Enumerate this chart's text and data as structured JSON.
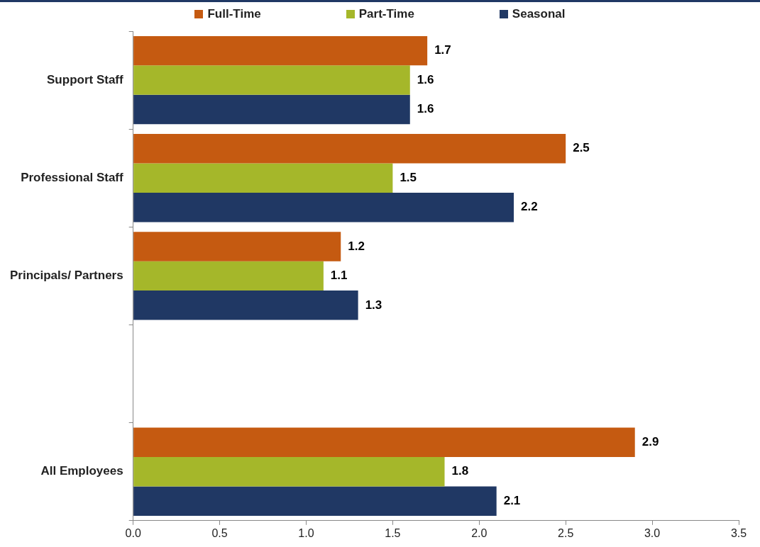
{
  "chart_data": {
    "type": "bar",
    "orientation": "horizontal",
    "categories": [
      "Support Staff",
      "Professional Staff",
      "Principals/ Partners",
      null,
      "All Employees"
    ],
    "series": [
      {
        "name": "Full-Time",
        "color": "#c55a11",
        "values": [
          1.7,
          2.5,
          1.2,
          null,
          2.9
        ]
      },
      {
        "name": "Part-Time",
        "color": "#a5b72a",
        "values": [
          1.6,
          1.5,
          1.1,
          null,
          1.8
        ]
      },
      {
        "name": "Seasonal",
        "color": "#203864",
        "values": [
          1.6,
          2.2,
          1.3,
          null,
          2.1
        ]
      }
    ],
    "xlim": [
      0,
      3.5
    ],
    "xticks": [
      {
        "value": 0,
        "label": "0.0"
      },
      {
        "value": 0.5,
        "label": "0.5"
      },
      {
        "value": 1,
        "label": "1.0"
      },
      {
        "value": 1.5,
        "label": "1.5"
      },
      {
        "value": 2,
        "label": "2.0"
      },
      {
        "value": 2.5,
        "label": "2.5"
      },
      {
        "value": 3,
        "label": "3.0"
      },
      {
        "value": 3.5,
        "label": "3.5"
      }
    ],
    "data_labels": true,
    "grid": false,
    "legend": "top"
  }
}
